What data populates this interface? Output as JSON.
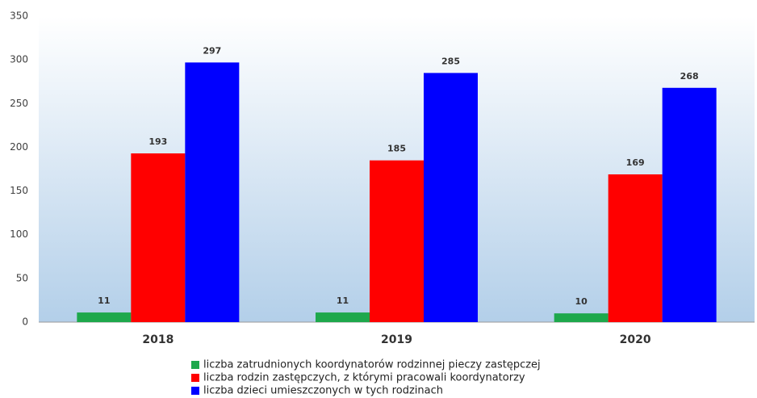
{
  "chart_data": {
    "type": "bar",
    "categories": [
      "2018",
      "2019",
      "2020"
    ],
    "series": [
      {
        "name": "liczba zatrudnionych koordynatorów rodzinnej pieczy zastępczej",
        "color": "#1ea84c",
        "values": [
          11,
          11,
          10
        ]
      },
      {
        "name": "liczba rodzin zastępczych, z którymi pracowali koordynatorzy",
        "color": "#ff0000",
        "values": [
          193,
          185,
          169
        ]
      },
      {
        "name": "liczba dzieci umieszczonych w tych rodzinach",
        "color": "#0000ff",
        "values": [
          297,
          285,
          268
        ]
      }
    ],
    "ylim": [
      0,
      350
    ],
    "yticks": [
      0,
      50,
      100,
      150,
      200,
      250,
      300,
      350
    ],
    "grid": false,
    "legend": "bottom"
  }
}
